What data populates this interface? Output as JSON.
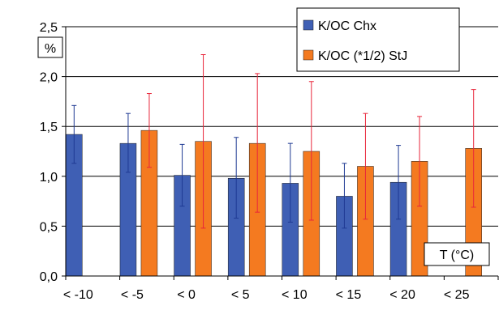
{
  "chart_data": {
    "type": "bar",
    "categories": [
      "< -10",
      "< -5",
      "< 0",
      "< 5",
      "< 10",
      "< 15",
      "< 20",
      "< 25"
    ],
    "series": [
      {
        "name": "K/OC Chx",
        "color": "#3F5FB4",
        "error_color": "#1F3A93",
        "values": [
          1.42,
          1.33,
          1.01,
          0.98,
          0.93,
          0.8,
          0.94,
          null
        ],
        "error_low": [
          1.13,
          1.04,
          0.7,
          0.58,
          0.54,
          0.48,
          0.57,
          null
        ],
        "error_high": [
          1.71,
          1.63,
          1.32,
          1.39,
          1.33,
          1.13,
          1.31,
          null
        ]
      },
      {
        "name": "K/OC (*1/2) StJ",
        "color": "#F47A20",
        "error_color": "#E8253A",
        "values": [
          null,
          1.46,
          1.35,
          1.33,
          1.25,
          1.1,
          1.15,
          1.28
        ],
        "error_low": [
          null,
          1.09,
          0.48,
          0.64,
          0.56,
          0.57,
          0.7,
          0.69
        ],
        "error_high": [
          null,
          1.83,
          2.22,
          2.03,
          1.95,
          1.63,
          1.6,
          1.87
        ]
      }
    ],
    "ylim": [
      0,
      2.5
    ],
    "yticks": [
      "0,0",
      "0,5",
      "1,0",
      "1,5",
      "2,0",
      "2,5"
    ],
    "ytick_values": [
      0,
      0.5,
      1.0,
      1.5,
      2.0,
      2.5
    ],
    "ylabel": "%",
    "xlabel": "T (°C)",
    "grid": "horizontal",
    "legend_position": "top-right"
  }
}
